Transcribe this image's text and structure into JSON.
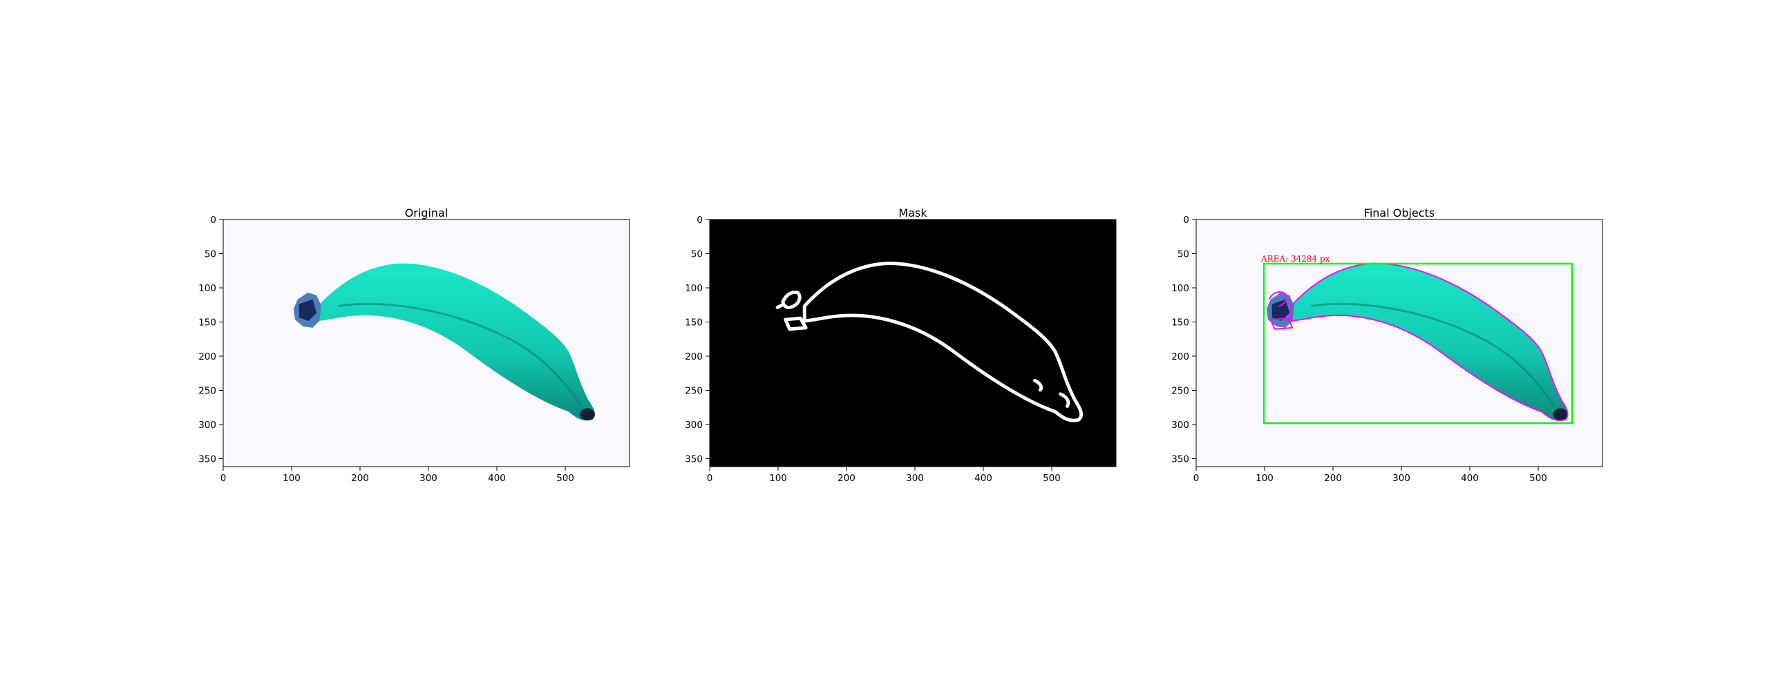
{
  "figure": {
    "panels": [
      {
        "title": "Original",
        "xticks": [
          "0",
          "100",
          "200",
          "300",
          "400",
          "500"
        ],
        "yticks": [
          "0",
          "50",
          "100",
          "150",
          "200",
          "250",
          "300",
          "350"
        ]
      },
      {
        "title": "Mask",
        "xticks": [
          "0",
          "100",
          "200",
          "300",
          "400",
          "500"
        ],
        "yticks": [
          "0",
          "50",
          "100",
          "150",
          "200",
          "250",
          "300",
          "350"
        ]
      },
      {
        "title": "Final Objects",
        "xticks": [
          "0",
          "100",
          "200",
          "300",
          "400",
          "500"
        ],
        "yticks": [
          "0",
          "50",
          "100",
          "150",
          "200",
          "250",
          "300",
          "350"
        ],
        "annotation": "AREA: 34284 px"
      }
    ]
  },
  "colors": {
    "banana_body": "#18dcc0",
    "banana_dark": "#0a8f80",
    "stem": "#1a2a5c",
    "background_light": "#f8f8fe",
    "mask_background": "#000000",
    "mask_contour": "#ffffff",
    "contour": "#ff00ff",
    "bounding_box": "#00ff00",
    "annotation_text": "#ff0000"
  }
}
